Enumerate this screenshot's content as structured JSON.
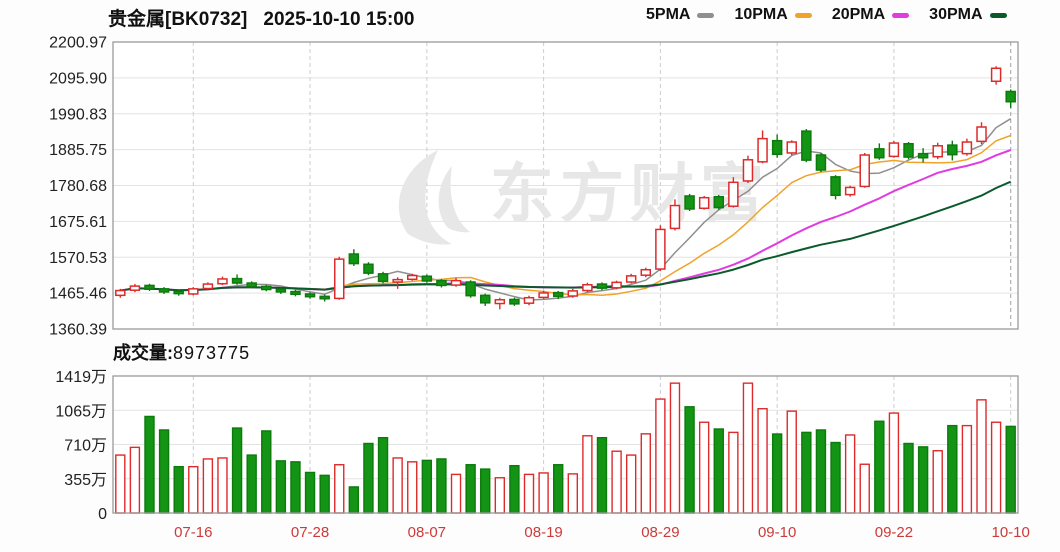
{
  "header": {
    "title": "贵金属[BK0732]",
    "datetime": "2025-10-10 15:00"
  },
  "legend": [
    {
      "label": "5PMA",
      "period": 5,
      "color": "#8f8f8f"
    },
    {
      "label": "10PMA",
      "period": 10,
      "color": "#f0a32a"
    },
    {
      "label": "20PMA",
      "period": 20,
      "color": "#e03ce0"
    },
    {
      "label": "30PMA",
      "period": 30,
      "color": "#0a5a2c"
    }
  ],
  "watermark": "东方财富",
  "colors": {
    "up": "#dd2b2b",
    "down_fill": "#149414",
    "down_stroke": "#0c7a0c",
    "date_label": "#cc3a3a",
    "tick_label": "#222222",
    "border": "#9a9a9a",
    "grid_h": "#e3e3e3",
    "grid_v": "#cdcdcd",
    "current_line": "#ababab",
    "watermark": "#e7e7e7"
  },
  "chart_data": {
    "type": "candlestick+volume",
    "title": "贵金属[BK0732] 2025-10-10 15:00",
    "price_axis": {
      "max": 2200.97,
      "min": 1360.39,
      "tick_labels": [
        "2200.97",
        "2095.90",
        "1990.83",
        "1885.75",
        "1780.68",
        "1675.61",
        "1570.53",
        "1465.46",
        "1360.39"
      ]
    },
    "volume_axis": {
      "max_wan": 1419,
      "tick_labels": [
        "1419万",
        "1065万",
        "710万",
        "355万",
        "0"
      ]
    },
    "x_ticks": [
      {
        "i": 5,
        "label": "07-16"
      },
      {
        "i": 13,
        "label": "07-28"
      },
      {
        "i": 21,
        "label": "08-07"
      },
      {
        "i": 29,
        "label": "08-19"
      },
      {
        "i": 37,
        "label": "08-29"
      },
      {
        "i": 45,
        "label": "09-10"
      },
      {
        "i": 53,
        "label": "09-22"
      },
      {
        "i": 61,
        "label": "10-10"
      }
    ],
    "volume_title": {
      "label": "成交量:",
      "value": "8973775"
    },
    "candles_ohlc": [
      [
        1459,
        1478,
        1452,
        1473
      ],
      [
        1474,
        1492,
        1468,
        1486
      ],
      [
        1488,
        1493,
        1472,
        1477
      ],
      [
        1478,
        1483,
        1463,
        1469
      ],
      [
        1471,
        1476,
        1458,
        1464
      ],
      [
        1463,
        1483,
        1459,
        1478
      ],
      [
        1479,
        1497,
        1475,
        1492
      ],
      [
        1493,
        1514,
        1489,
        1507
      ],
      [
        1508,
        1520,
        1490,
        1495
      ],
      [
        1495,
        1500,
        1479,
        1484
      ],
      [
        1485,
        1490,
        1471,
        1476
      ],
      [
        1477,
        1482,
        1463,
        1469
      ],
      [
        1470,
        1475,
        1456,
        1462
      ],
      [
        1463,
        1468,
        1449,
        1455
      ],
      [
        1456,
        1461,
        1441,
        1449
      ],
      [
        1450,
        1572,
        1446,
        1565
      ],
      [
        1580,
        1594,
        1545,
        1552
      ],
      [
        1550,
        1556,
        1518,
        1524
      ],
      [
        1522,
        1528,
        1494,
        1500
      ],
      [
        1498,
        1512,
        1478,
        1505
      ],
      [
        1506,
        1522,
        1502,
        1517
      ],
      [
        1515,
        1520,
        1496,
        1501
      ],
      [
        1502,
        1507,
        1482,
        1488
      ],
      [
        1489,
        1510,
        1484,
        1502
      ],
      [
        1498,
        1503,
        1452,
        1458
      ],
      [
        1459,
        1464,
        1428,
        1437
      ],
      [
        1435,
        1452,
        1418,
        1446
      ],
      [
        1447,
        1452,
        1428,
        1434
      ],
      [
        1436,
        1458,
        1430,
        1452
      ],
      [
        1453,
        1472,
        1448,
        1466
      ],
      [
        1467,
        1472,
        1448,
        1456
      ],
      [
        1457,
        1478,
        1452,
        1472
      ],
      [
        1473,
        1496,
        1468,
        1490
      ],
      [
        1492,
        1497,
        1474,
        1480
      ],
      [
        1481,
        1502,
        1477,
        1497
      ],
      [
        1498,
        1522,
        1494,
        1516
      ],
      [
        1518,
        1540,
        1512,
        1534
      ],
      [
        1536,
        1664,
        1530,
        1652
      ],
      [
        1655,
        1740,
        1649,
        1722
      ],
      [
        1750,
        1756,
        1706,
        1712
      ],
      [
        1714,
        1750,
        1710,
        1745
      ],
      [
        1748,
        1753,
        1710,
        1716
      ],
      [
        1720,
        1805,
        1716,
        1790
      ],
      [
        1794,
        1868,
        1788,
        1856
      ],
      [
        1850,
        1942,
        1846,
        1918
      ],
      [
        1912,
        1930,
        1862,
        1872
      ],
      [
        1876,
        1913,
        1870,
        1908
      ],
      [
        1940,
        1946,
        1849,
        1855
      ],
      [
        1870,
        1875,
        1820,
        1826
      ],
      [
        1806,
        1811,
        1740,
        1752
      ],
      [
        1754,
        1780,
        1748,
        1775
      ],
      [
        1778,
        1876,
        1774,
        1870
      ],
      [
        1888,
        1904,
        1856,
        1862
      ],
      [
        1866,
        1911,
        1862,
        1905
      ],
      [
        1903,
        1908,
        1858,
        1864
      ],
      [
        1874,
        1890,
        1848,
        1862
      ],
      [
        1865,
        1906,
        1858,
        1897
      ],
      [
        1899,
        1912,
        1854,
        1871
      ],
      [
        1874,
        1918,
        1868,
        1908
      ],
      [
        1910,
        1966,
        1902,
        1952
      ],
      [
        2086,
        2130,
        2076,
        2124
      ],
      [
        2056,
        2062,
        2008,
        2026
      ]
    ],
    "volumes_wan": [
      600,
      680,
      1000,
      860,
      480,
      480,
      560,
      570,
      880,
      600,
      850,
      540,
      530,
      420,
      390,
      500,
      270,
      720,
      780,
      570,
      530,
      545,
      560,
      400,
      500,
      455,
      365,
      490,
      400,
      415,
      500,
      405,
      800,
      780,
      640,
      600,
      820,
      1180,
      1345,
      1100,
      940,
      870,
      835,
      1345,
      1080,
      818,
      1055,
      835,
      860,
      730,
      808,
      505,
      950,
      1035,
      720,
      685,
      645,
      905,
      905,
      1172,
      940,
      897
    ]
  }
}
